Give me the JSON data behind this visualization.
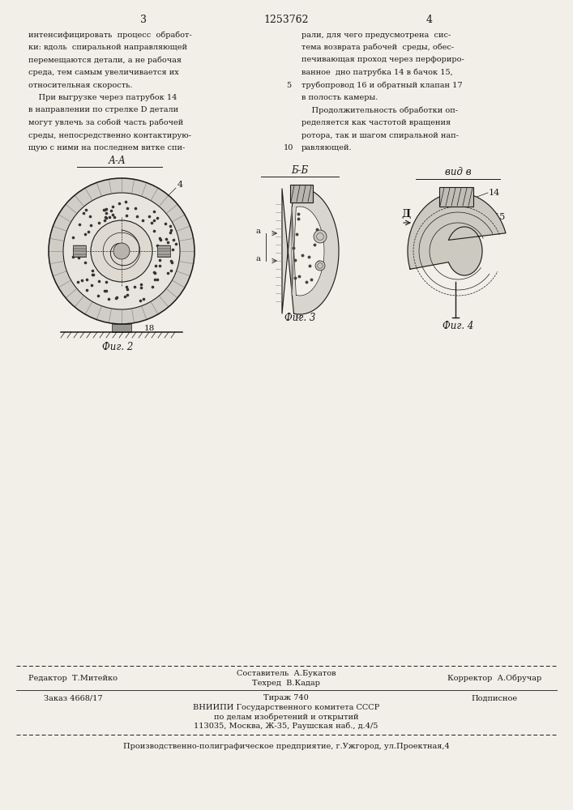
{
  "page_color": "#f2efe8",
  "text_color": "#1a1a1a",
  "patent_number": "1253762",
  "page_left": "3",
  "page_right": "4",
  "col_left_text": [
    "интенсифицировать  процесс  обработ-",
    "ки: вдоль  спиральной направляющей",
    "перемещаются детали, а не рабочая",
    "среда, тем самым увеличивается их",
    "относительная скорость.",
    "    При выгрузке через патрубок 14",
    "в направлении по стрелке D детали",
    "могут увлечь за собой часть рабочей",
    "среды, непосредственно контактирую-",
    "щую с ними на последнем витке спи-"
  ],
  "col_right_text": [
    "рали, для чего предусмотрена  сис-",
    "тема возврата рабочей  среды, обес-",
    "печивающая проход через перфориро-",
    "ванное  дно патрубка 14 в бачок 15,",
    "трубопровод 16 и обратный клапан 17",
    "в полость камеры.",
    "    Продолжительность обработки оп-",
    "ределяется как частотой вращения",
    "ротора, так и шагом спиральной нап-",
    "равляющей."
  ],
  "fig2_label": "Фиг. 2",
  "fig3_label": "Фиг. 3",
  "fig4_label": "Фиг. 4",
  "editor_line": "Редактор  Т.Митейко",
  "composer_line": "Составитель  А.Букатов",
  "tech_line": "Техред  В.Кадар",
  "corrector_line": "Корректор  А.Обручар",
  "order_line": "Заказ 4668/17",
  "print_line": "Тираж 740",
  "subscr_line": "Подписное",
  "org_line1": "ВНИИПИ Государственного комитета СССР",
  "org_line2": "по делам изобретений и открытий",
  "org_line3": "113035, Москва, Ж-35, Раушская наб., д.4/5",
  "factory_line": "Производственно-полиграфическое предприятие, г.Ужгород, ул.Проектная,4"
}
